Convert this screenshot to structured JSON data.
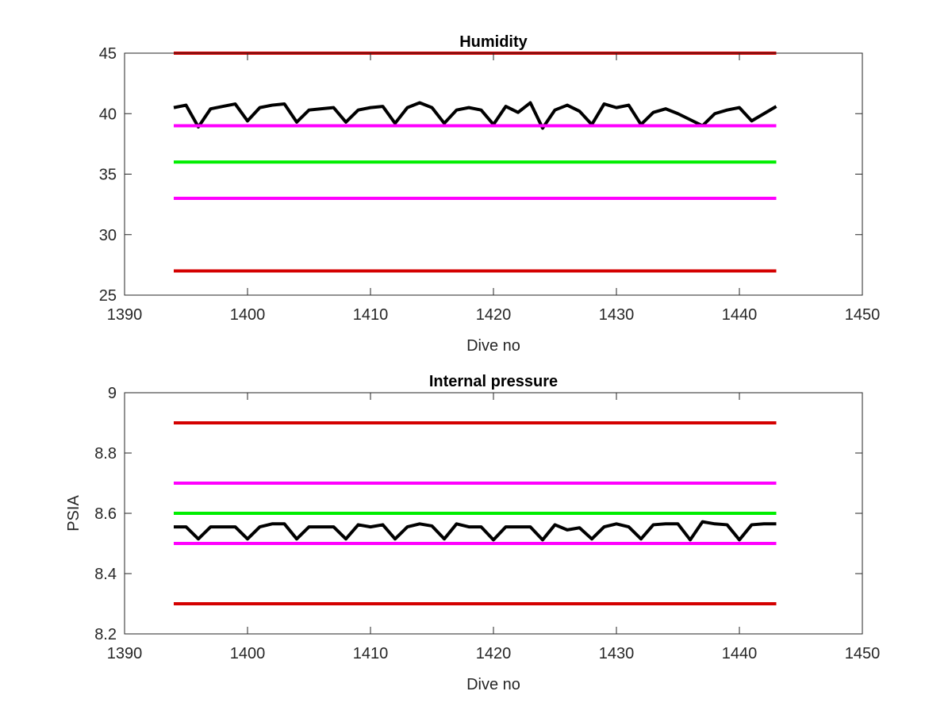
{
  "chart_data": [
    {
      "type": "line",
      "title": "Humidity",
      "xlabel": "Dive no",
      "ylabel": "",
      "xlim": [
        1390,
        1450
      ],
      "ylim": [
        25,
        45
      ],
      "xticks": [
        "1390",
        "1400",
        "1410",
        "1420",
        "1430",
        "1440",
        "1450"
      ],
      "yticks": [
        "25",
        "30",
        "35",
        "40",
        "45"
      ],
      "grid": false,
      "legend": false,
      "series": [
        {
          "color": "#000000",
          "x": [
            1394,
            1395,
            1396,
            1397,
            1398,
            1399,
            1400,
            1401,
            1402,
            1403,
            1404,
            1405,
            1406,
            1407,
            1408,
            1409,
            1410,
            1411,
            1412,
            1413,
            1414,
            1415,
            1416,
            1417,
            1418,
            1419,
            1420,
            1421,
            1422,
            1423,
            1424,
            1425,
            1426,
            1427,
            1428,
            1429,
            1430,
            1431,
            1432,
            1433,
            1434,
            1435,
            1436,
            1437,
            1438,
            1439,
            1440,
            1441,
            1442,
            1443
          ],
          "y": [
            40.5,
            40.7,
            38.9,
            40.4,
            40.6,
            40.8,
            39.4,
            40.5,
            40.7,
            40.8,
            39.3,
            40.3,
            40.4,
            40.5,
            39.3,
            40.3,
            40.5,
            40.6,
            39.2,
            40.5,
            40.9,
            40.5,
            39.2,
            40.3,
            40.5,
            40.3,
            39.1,
            40.6,
            40.1,
            40.9,
            38.8,
            40.3,
            40.7,
            40.2,
            39.1,
            40.8,
            40.5,
            40.7,
            39.1,
            40.1,
            40.4,
            40.0,
            39.5,
            39.0,
            40.0,
            40.3,
            40.5,
            39.4,
            40.0,
            40.6
          ]
        },
        {
          "color": "#d40000",
          "x": [
            1394,
            1443
          ],
          "y": [
            45,
            45
          ]
        },
        {
          "color": "#ff00ff",
          "x": [
            1394,
            1443
          ],
          "y": [
            39,
            39
          ]
        },
        {
          "color": "#00ee00",
          "x": [
            1394,
            1443
          ],
          "y": [
            36,
            36
          ]
        },
        {
          "color": "#ff00ff",
          "x": [
            1394,
            1443
          ],
          "y": [
            33,
            33
          ]
        },
        {
          "color": "#d40000",
          "x": [
            1394,
            1443
          ],
          "y": [
            27,
            27
          ]
        }
      ]
    },
    {
      "type": "line",
      "title": "Internal pressure",
      "xlabel": "Dive no",
      "ylabel": "PSIA",
      "xlim": [
        1390,
        1450
      ],
      "ylim": [
        8.2,
        9
      ],
      "xticks": [
        "1390",
        "1400",
        "1410",
        "1420",
        "1430",
        "1440",
        "1450"
      ],
      "yticks": [
        "8.2",
        "8.4",
        "8.6",
        "8.8",
        "9"
      ],
      "grid": false,
      "legend": false,
      "series": [
        {
          "color": "#000000",
          "x": [
            1394,
            1395,
            1396,
            1397,
            1398,
            1399,
            1400,
            1401,
            1402,
            1403,
            1404,
            1405,
            1406,
            1407,
            1408,
            1409,
            1410,
            1411,
            1412,
            1413,
            1414,
            1415,
            1416,
            1417,
            1418,
            1419,
            1420,
            1421,
            1422,
            1423,
            1424,
            1425,
            1426,
            1427,
            1428,
            1429,
            1430,
            1431,
            1432,
            1433,
            1434,
            1435,
            1436,
            1437,
            1438,
            1439,
            1440,
            1441,
            1442,
            1443
          ],
          "y": [
            8.555,
            8.555,
            8.515,
            8.555,
            8.555,
            8.555,
            8.515,
            8.555,
            8.565,
            8.565,
            8.515,
            8.555,
            8.555,
            8.555,
            8.515,
            8.562,
            8.555,
            8.562,
            8.515,
            8.555,
            8.565,
            8.558,
            8.515,
            8.565,
            8.555,
            8.555,
            8.512,
            8.555,
            8.555,
            8.555,
            8.512,
            8.562,
            8.545,
            8.552,
            8.515,
            8.555,
            8.565,
            8.555,
            8.515,
            8.562,
            8.565,
            8.565,
            8.512,
            8.572,
            8.565,
            8.562,
            8.512,
            8.562,
            8.565,
            8.565
          ]
        },
        {
          "color": "#d40000",
          "x": [
            1394,
            1443
          ],
          "y": [
            8.9,
            8.9
          ]
        },
        {
          "color": "#ff00ff",
          "x": [
            1394,
            1443
          ],
          "y": [
            8.7,
            8.7
          ]
        },
        {
          "color": "#00ee00",
          "x": [
            1394,
            1443
          ],
          "y": [
            8.6,
            8.6
          ]
        },
        {
          "color": "#ff00ff",
          "x": [
            1394,
            1443
          ],
          "y": [
            8.5,
            8.5
          ]
        },
        {
          "color": "#d40000",
          "x": [
            1394,
            1443
          ],
          "y": [
            8.3,
            8.3
          ]
        }
      ]
    }
  ]
}
